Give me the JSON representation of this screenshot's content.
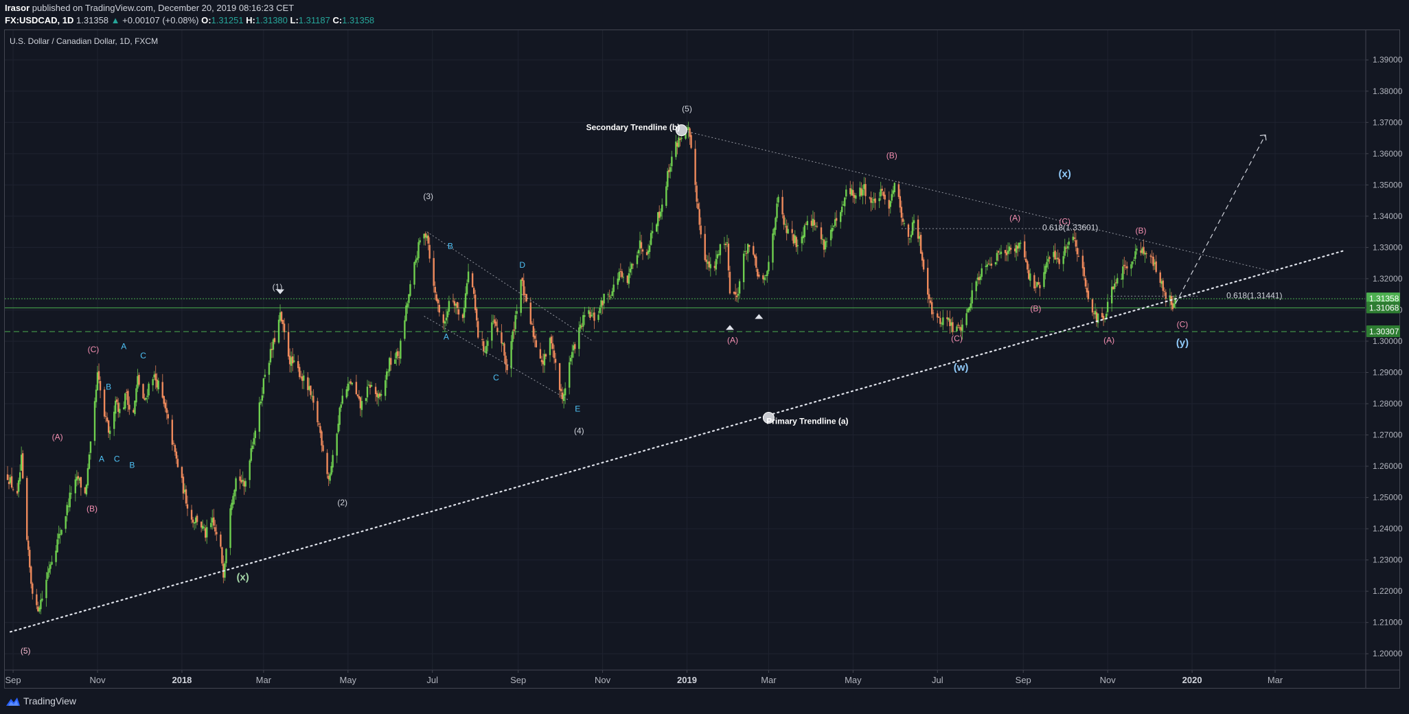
{
  "header": {
    "publisher": "Irasor",
    "published_text": "published on TradingView.com, December 20, 2019 08:16:23 CET",
    "symbol": "FX:USDCAD, 1D",
    "last": "1.31358",
    "change_arrow": "▲",
    "change": "+0.00107 (+0.08%)",
    "o_label": "O:",
    "o_value": "1.31251",
    "h_label": "H:",
    "h_value": "1.31380",
    "l_label": "L:",
    "l_value": "1.31187",
    "c_label": "C:",
    "c_value": "1.31358"
  },
  "footer": {
    "brand": "TradingView",
    "logo_icon": "tradingview-logo-icon"
  },
  "chart_data": {
    "type": "candlestick",
    "title": "U.S. Dollar / Canadian Dollar, 1D, FXCM",
    "colors": {
      "up": "#6fcf4f",
      "down": "#ef8a5c",
      "background": "#131722",
      "grid": "#1e222d",
      "price_tag_green": "#4caf50",
      "price_tag_dark": "#2e7d32"
    },
    "y_axis": {
      "ylim": [
        1.195,
        1.3995
      ],
      "ticks": [
        "1.39000",
        "1.38000",
        "1.37000",
        "1.36000",
        "1.35000",
        "1.34000",
        "1.33000",
        "1.32000",
        "1.31000",
        "1.30000",
        "1.29000",
        "1.28000",
        "1.27000",
        "1.26000",
        "1.25000",
        "1.24000",
        "1.23000",
        "1.22000",
        "1.21000",
        "1.20000"
      ]
    },
    "x_axis": {
      "labels": [
        {
          "label": "Sep",
          "date": "2017-09-01"
        },
        {
          "label": "Nov",
          "date": "2017-11-01"
        },
        {
          "label": "2018",
          "date": "2018-01-01",
          "year": true
        },
        {
          "label": "Mar",
          "date": "2018-03-01"
        },
        {
          "label": "May",
          "date": "2018-05-01"
        },
        {
          "label": "Jul",
          "date": "2018-07-01"
        },
        {
          "label": "Sep",
          "date": "2018-09-01"
        },
        {
          "label": "Nov",
          "date": "2018-11-01"
        },
        {
          "label": "2019",
          "date": "2019-01-01",
          "year": true
        },
        {
          "label": "Mar",
          "date": "2019-03-01"
        },
        {
          "label": "May",
          "date": "2019-05-01"
        },
        {
          "label": "Jul",
          "date": "2019-07-01"
        },
        {
          "label": "Sep",
          "date": "2019-09-01"
        },
        {
          "label": "Nov",
          "date": "2019-11-01"
        },
        {
          "label": "2020",
          "date": "2020-01-01",
          "year": true
        },
        {
          "label": "Mar",
          "date": "2020-03-01"
        }
      ],
      "xlim": [
        "2017-08-26",
        "2020-05-05"
      ]
    },
    "price_tags": [
      {
        "value": 1.31358,
        "label": "1.31358",
        "style": "green"
      },
      {
        "value": 1.31068,
        "label": "1.31068",
        "style": "dark"
      },
      {
        "value": 1.30307,
        "label": "1.30307",
        "style": "dark"
      }
    ],
    "horizontal_lines": [
      {
        "value": 1.31358,
        "style": "dotted",
        "color": "#4caf50"
      },
      {
        "value": 1.31068,
        "style": "solid",
        "color": "#4caf50"
      },
      {
        "value": 1.30307,
        "style": "dashed",
        "color": "#4caf50"
      }
    ],
    "price_path": [
      [
        "2017-08-28",
        1.257
      ],
      [
        "2017-09-04",
        1.25
      ],
      [
        "2017-09-07",
        1.262
      ],
      [
        "2017-09-10",
        1.24
      ],
      [
        "2017-09-14",
        1.223
      ],
      [
        "2017-09-18",
        1.214
      ],
      [
        "2017-09-22",
        1.218
      ],
      [
        "2017-09-27",
        1.228
      ],
      [
        "2017-10-03",
        1.236
      ],
      [
        "2017-10-08",
        1.243
      ],
      [
        "2017-10-13",
        1.252
      ],
      [
        "2017-10-18",
        1.256
      ],
      [
        "2017-10-23",
        1.251
      ],
      [
        "2017-10-28",
        1.27
      ],
      [
        "2017-11-01",
        1.289
      ],
      [
        "2017-11-06",
        1.276
      ],
      [
        "2017-11-10",
        1.27
      ],
      [
        "2017-11-14",
        1.282
      ],
      [
        "2017-11-18",
        1.276
      ],
      [
        "2017-11-22",
        1.284
      ],
      [
        "2017-11-26",
        1.273
      ],
      [
        "2017-11-30",
        1.288
      ],
      [
        "2017-12-05",
        1.28
      ],
      [
        "2017-12-10",
        1.29
      ],
      [
        "2017-12-15",
        1.286
      ],
      [
        "2017-12-21",
        1.276
      ],
      [
        "2017-12-28",
        1.262
      ],
      [
        "2018-01-03",
        1.251
      ],
      [
        "2018-01-08",
        1.243
      ],
      [
        "2018-01-13",
        1.243
      ],
      [
        "2018-01-18",
        1.238
      ],
      [
        "2018-01-23",
        1.242
      ],
      [
        "2018-01-29",
        1.233
      ],
      [
        "2018-01-31",
        1.226
      ],
      [
        "2018-02-05",
        1.248
      ],
      [
        "2018-02-10",
        1.258
      ],
      [
        "2018-02-15",
        1.253
      ],
      [
        "2018-02-20",
        1.266
      ],
      [
        "2018-02-25",
        1.276
      ],
      [
        "2018-03-02",
        1.29
      ],
      [
        "2018-03-08",
        1.299
      ],
      [
        "2018-03-13",
        1.308
      ],
      [
        "2018-03-20",
        1.294
      ],
      [
        "2018-03-27",
        1.29
      ],
      [
        "2018-04-03",
        1.284
      ],
      [
        "2018-04-10",
        1.273
      ],
      [
        "2018-04-17",
        1.256
      ],
      [
        "2018-04-20",
        1.262
      ],
      [
        "2018-04-26",
        1.281
      ],
      [
        "2018-05-03",
        1.287
      ],
      [
        "2018-05-10",
        1.279
      ],
      [
        "2018-05-17",
        1.286
      ],
      [
        "2018-05-24",
        1.281
      ],
      [
        "2018-05-31",
        1.293
      ],
      [
        "2018-06-07",
        1.296
      ],
      [
        "2018-06-12",
        1.31
      ],
      [
        "2018-06-18",
        1.324
      ],
      [
        "2018-06-22",
        1.332
      ],
      [
        "2018-06-27",
        1.335
      ],
      [
        "2018-07-02",
        1.317
      ],
      [
        "2018-07-06",
        1.31
      ],
      [
        "2018-07-10",
        1.305
      ],
      [
        "2018-07-14",
        1.316
      ],
      [
        "2018-07-18",
        1.312
      ],
      [
        "2018-07-22",
        1.305
      ],
      [
        "2018-07-28",
        1.325
      ],
      [
        "2018-08-03",
        1.302
      ],
      [
        "2018-08-08",
        1.297
      ],
      [
        "2018-08-14",
        1.306
      ],
      [
        "2018-08-20",
        1.3
      ],
      [
        "2018-08-24",
        1.291
      ],
      [
        "2018-08-28",
        1.302
      ],
      [
        "2018-09-03",
        1.32
      ],
      [
        "2018-09-08",
        1.309
      ],
      [
        "2018-09-14",
        1.299
      ],
      [
        "2018-09-19",
        1.293
      ],
      [
        "2018-09-25",
        1.301
      ],
      [
        "2018-09-29",
        1.289
      ],
      [
        "2018-10-03",
        1.281
      ],
      [
        "2018-10-08",
        1.293
      ],
      [
        "2018-10-14",
        1.302
      ],
      [
        "2018-10-20",
        1.309
      ],
      [
        "2018-10-27",
        1.307
      ],
      [
        "2018-11-02",
        1.314
      ],
      [
        "2018-11-08",
        1.316
      ],
      [
        "2018-11-13",
        1.322
      ],
      [
        "2018-11-18",
        1.317
      ],
      [
        "2018-11-23",
        1.326
      ],
      [
        "2018-11-28",
        1.331
      ],
      [
        "2018-12-03",
        1.329
      ],
      [
        "2018-12-08",
        1.337
      ],
      [
        "2018-12-13",
        1.342
      ],
      [
        "2018-12-18",
        1.353
      ],
      [
        "2018-12-22",
        1.361
      ],
      [
        "2018-12-28",
        1.366
      ],
      [
        "2019-01-02",
        1.367
      ],
      [
        "2019-01-06",
        1.354
      ],
      [
        "2019-01-10",
        1.338
      ],
      [
        "2019-01-15",
        1.325
      ],
      [
        "2019-01-20",
        1.322
      ],
      [
        "2019-01-25",
        1.331
      ],
      [
        "2019-01-30",
        1.331
      ],
      [
        "2019-02-01",
        1.317
      ],
      [
        "2019-02-06",
        1.314
      ],
      [
        "2019-02-10",
        1.325
      ],
      [
        "2019-02-14",
        1.331
      ],
      [
        "2019-02-19",
        1.325
      ],
      [
        "2019-02-24",
        1.317
      ],
      [
        "2019-02-28",
        1.322
      ],
      [
        "2019-03-04",
        1.335
      ],
      [
        "2019-03-08",
        1.345
      ],
      [
        "2019-03-13",
        1.336
      ],
      [
        "2019-03-18",
        1.333
      ],
      [
        "2019-03-23",
        1.331
      ],
      [
        "2019-03-29",
        1.34
      ],
      [
        "2019-04-04",
        1.337
      ],
      [
        "2019-04-10",
        1.331
      ],
      [
        "2019-04-16",
        1.336
      ],
      [
        "2019-04-22",
        1.34
      ],
      [
        "2019-04-27",
        1.349
      ],
      [
        "2019-05-03",
        1.346
      ],
      [
        "2019-05-09",
        1.349
      ],
      [
        "2019-05-15",
        1.344
      ],
      [
        "2019-05-21",
        1.347
      ],
      [
        "2019-05-27",
        1.344
      ],
      [
        "2019-05-31",
        1.351
      ],
      [
        "2019-06-05",
        1.341
      ],
      [
        "2019-06-10",
        1.332
      ],
      [
        "2019-06-14",
        1.338
      ],
      [
        "2019-06-18",
        1.332
      ],
      [
        "2019-06-22",
        1.321
      ],
      [
        "2019-06-27",
        1.31
      ],
      [
        "2019-07-02",
        1.306
      ],
      [
        "2019-07-07",
        1.308
      ],
      [
        "2019-07-12",
        1.304
      ],
      [
        "2019-07-17",
        1.304
      ],
      [
        "2019-07-22",
        1.308
      ],
      [
        "2019-07-27",
        1.317
      ],
      [
        "2019-08-01",
        1.322
      ],
      [
        "2019-08-06",
        1.326
      ],
      [
        "2019-08-11",
        1.325
      ],
      [
        "2019-08-16",
        1.33
      ],
      [
        "2019-08-21",
        1.329
      ],
      [
        "2019-08-26",
        1.329
      ],
      [
        "2019-08-31",
        1.333
      ],
      [
        "2019-09-05",
        1.321
      ],
      [
        "2019-09-10",
        1.317
      ],
      [
        "2019-09-14",
        1.318
      ],
      [
        "2019-09-18",
        1.325
      ],
      [
        "2019-09-23",
        1.328
      ],
      [
        "2019-09-28",
        1.325
      ],
      [
        "2019-10-03",
        1.332
      ],
      [
        "2019-10-08",
        1.333
      ],
      [
        "2019-10-13",
        1.324
      ],
      [
        "2019-10-18",
        1.315
      ],
      [
        "2019-10-23",
        1.308
      ],
      [
        "2019-10-29",
        1.306
      ],
      [
        "2019-11-03",
        1.315
      ],
      [
        "2019-11-08",
        1.319
      ],
      [
        "2019-11-13",
        1.323
      ],
      [
        "2019-11-18",
        1.326
      ],
      [
        "2019-11-23",
        1.33
      ],
      [
        "2019-11-28",
        1.329
      ],
      [
        "2019-12-03",
        1.326
      ],
      [
        "2019-12-08",
        1.32
      ],
      [
        "2019-12-13",
        1.315
      ],
      [
        "2019-12-18",
        1.312
      ],
      [
        "2019-12-20",
        1.3136
      ]
    ],
    "trendlines": [
      {
        "name": "primary",
        "from": [
          "2017-08-30",
          1.207
        ],
        "to": [
          "2020-04-20",
          1.329
        ],
        "style": "dotted-bold"
      },
      {
        "name": "secondary",
        "from": [
          "2018-12-28",
          1.3675
        ],
        "to": [
          "2020-03-02",
          1.322
        ],
        "style": "dotted-thin"
      },
      {
        "name": "projection",
        "from": [
          "2019-12-20",
          1.312
        ],
        "to": [
          "2020-02-23",
          1.366
        ],
        "style": "dashed"
      },
      {
        "name": "channel-upper",
        "from": [
          "2018-06-27",
          1.335
        ],
        "to": [
          "2018-10-25",
          1.3
        ],
        "style": "dotted-thin"
      },
      {
        "name": "channel-lower",
        "from": [
          "2018-06-25",
          1.308
        ],
        "to": [
          "2018-10-08",
          1.281
        ],
        "style": "dotted-thin"
      },
      {
        "name": "fib-line",
        "from": [
          "2019-06-05",
          1.33601
        ],
        "to": [
          "2019-10-08",
          1.33601
        ],
        "style": "dotted-thin"
      },
      {
        "name": "fib-line-2",
        "from": [
          "2019-11-03",
          1.31441
        ],
        "to": [
          "2020-01-05",
          1.31441
        ],
        "style": "dotted-thin"
      }
    ],
    "annotations": [
      {
        "text": "(5)",
        "date": "2017-09-10",
        "price": 1.2,
        "color": "#f8bbd0"
      },
      {
        "text": "(A)",
        "date": "2017-10-03",
        "price": 1.2685,
        "color": "#f48fb1"
      },
      {
        "text": "(B)",
        "date": "2017-10-28",
        "price": 1.2455,
        "color": "#f48fb1"
      },
      {
        "text": "(C)",
        "date": "2017-10-29",
        "price": 1.2965,
        "color": "#f48fb1"
      },
      {
        "text": "A",
        "date": "2017-11-04",
        "price": 1.2615,
        "color": "#4fc3f7"
      },
      {
        "text": "B",
        "date": "2017-11-09",
        "price": 1.2845,
        "color": "#4fc3f7"
      },
      {
        "text": "C",
        "date": "2017-11-15",
        "price": 1.2615,
        "color": "#4fc3f7"
      },
      {
        "text": "A",
        "date": "2017-11-20",
        "price": 1.2975,
        "color": "#4fc3f7"
      },
      {
        "text": "B",
        "date": "2017-11-26",
        "price": 1.2595,
        "color": "#4fc3f7"
      },
      {
        "text": "C",
        "date": "2017-12-04",
        "price": 1.2945,
        "color": "#4fc3f7"
      },
      {
        "text": "(x)",
        "date": "2018-02-14",
        "price": 1.2235,
        "color": "#a5d6a7",
        "bold": true
      },
      {
        "text": "(1)",
        "date": "2018-03-11",
        "price": 1.3165,
        "color": "#d1d4dc"
      },
      {
        "text": "(2)",
        "date": "2018-04-27",
        "price": 1.2475,
        "color": "#d1d4dc"
      },
      {
        "text": "(3)",
        "date": "2018-06-28",
        "price": 1.3455,
        "color": "#d1d4dc"
      },
      {
        "text": "B",
        "date": "2018-07-14",
        "price": 1.3295,
        "color": "#4fc3f7"
      },
      {
        "text": "A",
        "date": "2018-07-11",
        "price": 1.3005,
        "color": "#4fc3f7"
      },
      {
        "text": "C",
        "date": "2018-08-16",
        "price": 1.2875,
        "color": "#4fc3f7"
      },
      {
        "text": "D",
        "date": "2018-09-04",
        "price": 1.3235,
        "color": "#4fc3f7"
      },
      {
        "text": "E",
        "date": "2018-10-14",
        "price": 1.2775,
        "color": "#4fc3f7"
      },
      {
        "text": "(4)",
        "date": "2018-10-15",
        "price": 1.2705,
        "color": "#d1d4dc"
      },
      {
        "text": "(5)",
        "date": "2019-01-01",
        "price": 1.3735,
        "color": "#d1d4dc"
      },
      {
        "text": "Secondary Trendline (b)",
        "date": "2018-11-23",
        "price": 1.3675,
        "color": "#ffffff",
        "bold": true
      },
      {
        "text": "Primary Trendline (a)",
        "date": "2019-03-29",
        "price": 1.2735,
        "color": "#ffffff",
        "bold": true
      },
      {
        "text": "(A)",
        "date": "2019-02-03",
        "price": 1.2995,
        "color": "#f48fb1"
      },
      {
        "text": "(B)",
        "date": "2019-05-29",
        "price": 1.3585,
        "color": "#f48fb1"
      },
      {
        "text": "(C)",
        "date": "2019-07-15",
        "price": 1.3,
        "color": "#f48fb1"
      },
      {
        "text": "(w)",
        "date": "2019-07-18",
        "price": 1.2905,
        "color": "#90caf9",
        "bold": true
      },
      {
        "text": "(A)",
        "date": "2019-08-26",
        "price": 1.3385,
        "color": "#f48fb1"
      },
      {
        "text": "0.618(1.33601)",
        "date": "2019-10-05",
        "price": 1.3355,
        "color": "#d1d4dc",
        "plain": true
      },
      {
        "text": "(B)",
        "date": "2019-09-10",
        "price": 1.3095,
        "color": "#f48fb1"
      },
      {
        "text": "(C)",
        "date": "2019-10-01",
        "price": 1.3375,
        "color": "#f48fb1"
      },
      {
        "text": "(x)",
        "date": "2019-10-01",
        "price": 1.3525,
        "color": "#90caf9",
        "bold": true
      },
      {
        "text": "(B)",
        "date": "2019-11-25",
        "price": 1.3345,
        "color": "#f48fb1"
      },
      {
        "text": "(A)",
        "date": "2019-11-02",
        "price": 1.2995,
        "color": "#f48fb1"
      },
      {
        "text": "0.618(1.31441)",
        "date": "2020-02-15",
        "price": 1.3137,
        "color": "#d1d4dc",
        "plain": true
      },
      {
        "text": "(C)",
        "date": "2019-12-25",
        "price": 1.3045,
        "color": "#f48fb1"
      },
      {
        "text": "(y)",
        "date": "2019-12-25",
        "price": 1.2985,
        "color": "#90caf9",
        "bold": true
      }
    ],
    "markers": [
      {
        "kind": "circle",
        "date": "2018-12-28",
        "price": 1.3675
      },
      {
        "kind": "circle",
        "date": "2019-03-01",
        "price": 1.2755
      },
      {
        "kind": "triangle-down",
        "date": "2018-03-13",
        "price": 1.3157
      },
      {
        "kind": "triangle-up",
        "date": "2019-02-01",
        "price": 1.3045
      },
      {
        "kind": "triangle-up",
        "date": "2019-02-22",
        "price": 1.308
      }
    ]
  }
}
